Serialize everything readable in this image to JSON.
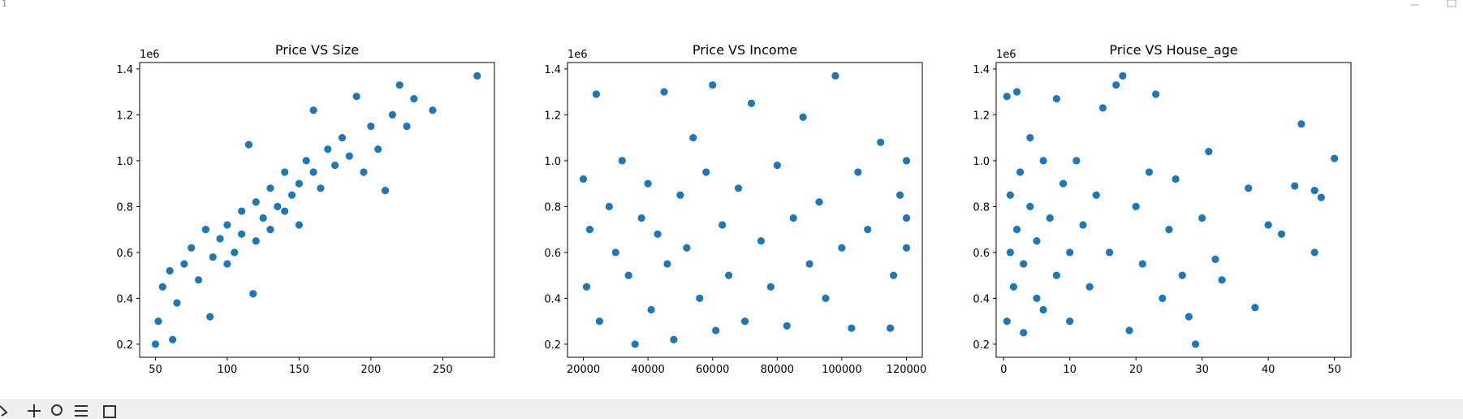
{
  "window": {
    "title": "1"
  },
  "chart_data": [
    {
      "type": "scatter",
      "title": "Price VS Size",
      "y_offset_label": "1e6",
      "color": "#1f77b4",
      "x": [
        50,
        52,
        55,
        60,
        65,
        70,
        75,
        80,
        85,
        90,
        95,
        100,
        100,
        105,
        110,
        110,
        115,
        120,
        120,
        125,
        130,
        130,
        135,
        140,
        140,
        145,
        150,
        150,
        155,
        160,
        160,
        165,
        170,
        175,
        180,
        185,
        190,
        195,
        200,
        205,
        210,
        215,
        220,
        225,
        230,
        243,
        274,
        118,
        62,
        88
      ],
      "y": [
        0.2,
        0.3,
        0.45,
        0.52,
        0.38,
        0.55,
        0.62,
        0.48,
        0.7,
        0.58,
        0.66,
        0.72,
        0.55,
        0.6,
        0.78,
        0.68,
        1.07,
        0.65,
        0.82,
        0.75,
        0.88,
        0.7,
        0.8,
        0.95,
        0.78,
        0.85,
        0.9,
        0.72,
        1.0,
        0.95,
        1.22,
        0.88,
        1.05,
        0.98,
        1.1,
        1.02,
        1.28,
        0.95,
        1.15,
        1.05,
        0.87,
        1.2,
        1.33,
        1.15,
        1.27,
        1.22,
        1.37,
        0.42,
        0.22,
        0.32
      ],
      "xlim": [
        39,
        286
      ],
      "ylim": [
        0.143,
        1.428
      ],
      "xticks": [
        50,
        100,
        150,
        200,
        250
      ],
      "yticks": [
        0.2,
        0.4,
        0.6,
        0.8,
        {
          "value": 1,
          "label": "1.0"
        },
        1.2,
        1.4
      ]
    },
    {
      "type": "scatter",
      "title": "Price VS Income",
      "y_offset_label": "1e6",
      "color": "#1f77b4",
      "x": [
        20000,
        21000,
        22000,
        24000,
        25000,
        28000,
        30000,
        32000,
        34000,
        36000,
        38000,
        40000,
        41000,
        43000,
        45000,
        46000,
        48000,
        50000,
        52000,
        54000,
        56000,
        58000,
        60000,
        61000,
        63000,
        65000,
        68000,
        70000,
        72000,
        75000,
        78000,
        80000,
        83000,
        85000,
        88000,
        90000,
        93000,
        95000,
        98000,
        100000,
        103000,
        105000,
        108000,
        112000,
        115000,
        116000,
        118000,
        120000,
        120000,
        120000
      ],
      "y": [
        0.92,
        0.45,
        0.7,
        1.29,
        0.3,
        0.8,
        0.6,
        1.0,
        0.5,
        0.2,
        0.75,
        0.9,
        0.35,
        0.68,
        1.3,
        0.55,
        0.22,
        0.85,
        0.62,
        1.1,
        0.4,
        0.95,
        1.33,
        0.26,
        0.72,
        0.5,
        0.88,
        0.3,
        1.25,
        0.65,
        0.45,
        0.98,
        0.28,
        0.75,
        1.19,
        0.55,
        0.82,
        0.4,
        1.37,
        0.62,
        0.27,
        0.95,
        0.7,
        1.08,
        0.27,
        0.5,
        0.85,
        0.62,
        1.0,
        0.75
      ],
      "xlim": [
        15100,
        124900
      ],
      "ylim": [
        0.143,
        1.428
      ],
      "xticks": [
        20000,
        40000,
        60000,
        80000,
        100000,
        120000
      ],
      "yticks": [
        0.2,
        0.4,
        0.6,
        0.8,
        {
          "value": 1,
          "label": "1.0"
        },
        1.2,
        1.4
      ]
    },
    {
      "type": "scatter",
      "title": "Price VS House_age",
      "y_offset_label": "1e6",
      "color": "#1f77b4",
      "x": [
        0.5,
        0.5,
        1,
        1,
        1.5,
        2,
        2,
        2.5,
        3,
        3,
        4,
        4,
        5,
        5,
        6,
        6,
        7,
        8,
        8,
        9,
        10,
        10,
        11,
        12,
        13,
        14,
        15,
        16,
        17,
        18,
        19,
        20,
        21,
        22,
        23,
        24,
        25,
        26,
        27,
        28,
        29,
        30,
        31,
        32,
        33,
        37,
        38,
        40,
        42,
        44,
        45,
        47,
        47,
        48,
        50
      ],
      "y": [
        0.3,
        1.28,
        0.6,
        0.85,
        0.45,
        1.3,
        0.7,
        0.95,
        0.25,
        0.55,
        1.1,
        0.8,
        0.4,
        0.65,
        1.0,
        0.35,
        0.75,
        1.27,
        0.5,
        0.9,
        0.6,
        0.3,
        1.0,
        0.72,
        0.45,
        0.85,
        1.23,
        0.6,
        1.33,
        1.37,
        0.26,
        0.8,
        0.55,
        0.95,
        1.29,
        0.4,
        0.7,
        0.92,
        0.5,
        0.32,
        0.2,
        0.75,
        1.04,
        0.57,
        0.48,
        0.88,
        0.36,
        0.72,
        0.68,
        0.89,
        1.16,
        0.6,
        0.87,
        0.84,
        1.01
      ],
      "xlim": [
        -1.13,
        52.5
      ],
      "ylim": [
        0.143,
        1.428
      ],
      "xticks": [
        0,
        10,
        20,
        30,
        40,
        50
      ],
      "yticks": [
        0.2,
        0.4,
        0.6,
        0.8,
        {
          "value": 1,
          "label": "1.0"
        },
        1.2,
        1.4
      ]
    }
  ]
}
